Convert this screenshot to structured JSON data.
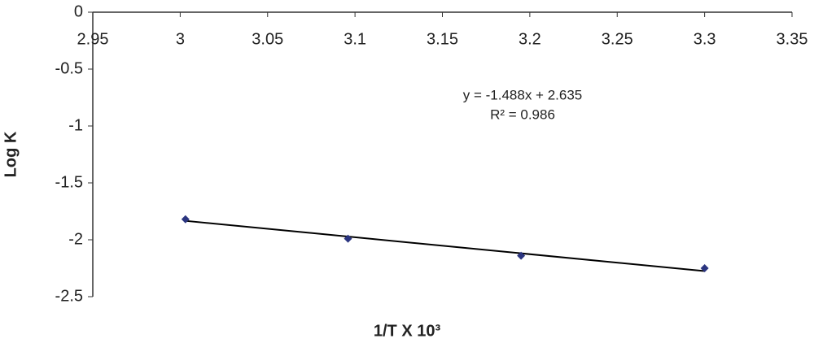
{
  "chart_data": {
    "type": "scatter",
    "x_label": "1/T X 10³",
    "y_label": "Log K",
    "x": [
      3.003,
      3.096,
      3.195,
      3.3
    ],
    "series": [
      {
        "color": "#2b3580",
        "values": [
          -1.82,
          -1.99,
          -2.14,
          -2.25
        ]
      }
    ],
    "xlim": [
      2.95,
      3.35
    ],
    "xticks": [
      2.95,
      3,
      3.05,
      3.1,
      3.15,
      3.2,
      3.25,
      3.3,
      3.35
    ],
    "ylim": [
      -2.5,
      0
    ],
    "yticks": [
      0,
      -0.5,
      -1,
      -1.5,
      -2,
      -2.5
    ],
    "grid": false,
    "trendline": {
      "slope": -1.488,
      "intercept": 2.635,
      "color": "#000000",
      "equation": "y = -1.488x  + 2.635",
      "r2": "R² = 0.986"
    }
  }
}
